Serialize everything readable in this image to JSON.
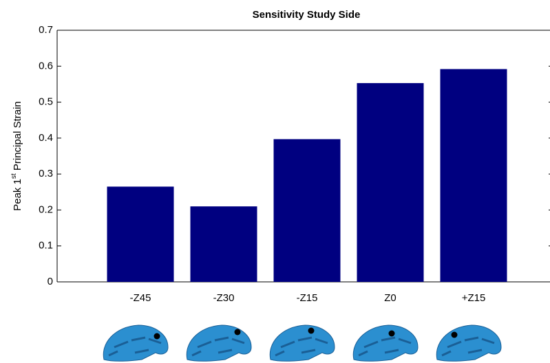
{
  "chart_data": {
    "type": "bar",
    "title": "Sensitivity Study Side",
    "y_label": {
      "before": "Peak 1",
      "sup": "st",
      "after": " Principal Strain"
    },
    "categories": [
      "-Z45",
      "-Z30",
      "-Z15",
      "Z0",
      "+Z15"
    ],
    "values": [
      0.265,
      0.21,
      0.397,
      0.553,
      0.592
    ],
    "color": "#000080",
    "ylim": [
      0,
      0.7
    ],
    "yticks": [
      0,
      0.1,
      0.2,
      0.3,
      0.4,
      0.5,
      0.6,
      0.7
    ],
    "grid": false
  }
}
